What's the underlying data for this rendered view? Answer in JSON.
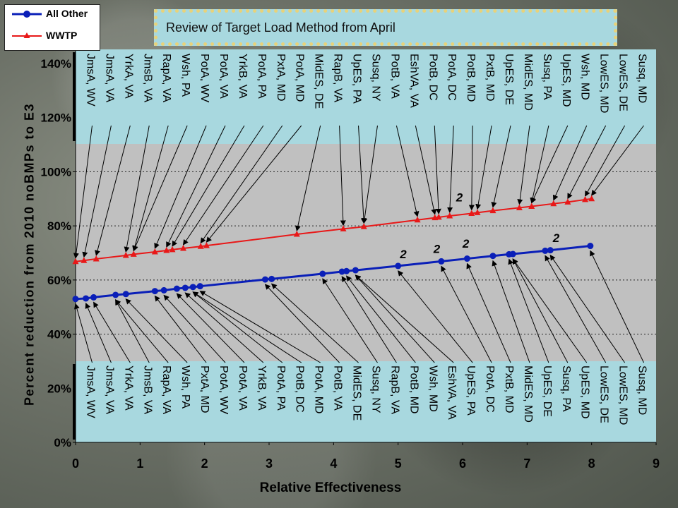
{
  "title": "Review of Target Load Method from April",
  "legend": {
    "series1": "All Other",
    "series2": "WWTP"
  },
  "colors": {
    "all_other": "#0a1fb8",
    "wwtp": "#e81818",
    "label_panel": "#a8d8df",
    "plot_bg": "#c0c0c0"
  },
  "chart_data": {
    "type": "line",
    "xlabel": "Relative Effectiveness",
    "ylabel": "Percent reduction from 2010 noBMPs to E3",
    "xlim": [
      0,
      9
    ],
    "ylim": [
      0,
      140
    ],
    "x_ticks": [
      "0",
      "1",
      "2",
      "3",
      "4",
      "5",
      "6",
      "7",
      "8",
      "9"
    ],
    "y_ticks": [
      "0%",
      "20%",
      "40%",
      "60%",
      "80%",
      "100%",
      "120%",
      "140%"
    ],
    "grid": "horizontal dotted",
    "legend_position": "top-left",
    "series": [
      {
        "name": "All Other",
        "points": [
          [
            0.0,
            53
          ],
          [
            0.16,
            53.2
          ],
          [
            0.28,
            53.6
          ],
          [
            0.62,
            54.5
          ],
          [
            0.78,
            54.8
          ],
          [
            1.23,
            55.9
          ],
          [
            1.37,
            56.2
          ],
          [
            1.57,
            56.8
          ],
          [
            1.7,
            57.1
          ],
          [
            1.82,
            57.4
          ],
          [
            1.93,
            57.7
          ],
          [
            2.94,
            60.2
          ],
          [
            3.04,
            60.4
          ],
          [
            3.83,
            62.3
          ],
          [
            4.13,
            63.1
          ],
          [
            4.2,
            63.3
          ],
          [
            4.34,
            63.6
          ],
          [
            5.0,
            65.2
          ],
          [
            5.67,
            66.9
          ],
          [
            6.07,
            67.9
          ],
          [
            6.47,
            68.9
          ],
          [
            6.72,
            69.5
          ],
          [
            6.78,
            69.6
          ],
          [
            7.28,
            70.8
          ],
          [
            7.36,
            71
          ],
          [
            7.98,
            72.6
          ]
        ]
      },
      {
        "name": "WWTP",
        "points": [
          [
            0.0,
            66.8
          ],
          [
            0.13,
            67.2
          ],
          [
            0.32,
            67.8
          ],
          [
            0.78,
            69.1
          ],
          [
            0.9,
            69.5
          ],
          [
            1.23,
            70.4
          ],
          [
            1.41,
            70.9
          ],
          [
            1.5,
            71.2
          ],
          [
            1.67,
            71.7
          ],
          [
            1.94,
            72.4
          ],
          [
            2.03,
            72.7
          ],
          [
            3.43,
            76.9
          ],
          [
            4.15,
            78.9
          ],
          [
            4.47,
            79.7
          ],
          [
            5.3,
            82.2
          ],
          [
            5.57,
            83
          ],
          [
            5.63,
            83.2
          ],
          [
            5.8,
            83.7
          ],
          [
            6.14,
            84.6
          ],
          [
            6.23,
            84.9
          ],
          [
            6.47,
            85.6
          ],
          [
            6.88,
            86.7
          ],
          [
            7.07,
            87.2
          ],
          [
            7.41,
            88.2
          ],
          [
            7.63,
            88.8
          ],
          [
            7.9,
            89.7
          ],
          [
            8.0,
            90
          ]
        ]
      }
    ],
    "annotations": [
      {
        "text": "2",
        "x": 5.08,
        "y": 68,
        "series": "All Other"
      },
      {
        "text": "2",
        "x": 5.6,
        "y": 70,
        "series": "All Other"
      },
      {
        "text": "2",
        "x": 6.05,
        "y": 72,
        "series": "All Other"
      },
      {
        "text": "2",
        "x": 7.45,
        "y": 74,
        "series": "All Other"
      },
      {
        "text": "2",
        "x": 5.95,
        "y": 89,
        "series": "WWTP"
      }
    ],
    "top_labels": [
      "JmsA, WV",
      "JmsA, VA",
      "YrkA, VA",
      "JmsB, VA",
      "RapA, VA",
      "Wsh, PA",
      "PotA, WV",
      "PotA, VA",
      "YrkB, VA",
      "PotA, PA",
      "PxtA, MD",
      "PotA, MD",
      "MidES, DE",
      "RapB, VA",
      "UpES, PA",
      "Susq, NY",
      "PotB, VA",
      "EshVA, VA",
      "PotB, DC",
      "PotA, DC",
      "PotB, MD",
      "PxtB, MD",
      "UpES, DE",
      "MidES, MD",
      "Susq, PA",
      "UpES, MD",
      "Wsh, MD",
      "LowES, MD",
      "LowES, DE",
      "Susq, MD"
    ],
    "bottom_labels": [
      "JmsA, WV",
      "JmsA, VA",
      "YrkA, VA",
      "JmsB, VA",
      "RapA, VA",
      "Wsh, PA",
      "PxtA, MD",
      "PotA, WV",
      "PotA, VA",
      "YrkB, VA",
      "PotA, PA",
      "PotB, DC",
      "PotA, MD",
      "PotB, VA",
      "MidES, DE",
      "Susq, NY",
      "RapB, VA",
      "PotB, MD",
      "Wsh, MD",
      "EshVA, VA",
      "UpES, PA",
      "PotA, DC",
      "PxtB, MD",
      "MidES, MD",
      "UpES, DE",
      "Susq, PA",
      "UpES, MD",
      "LowES, DE",
      "LowES, MD",
      "Susq, MD"
    ]
  }
}
